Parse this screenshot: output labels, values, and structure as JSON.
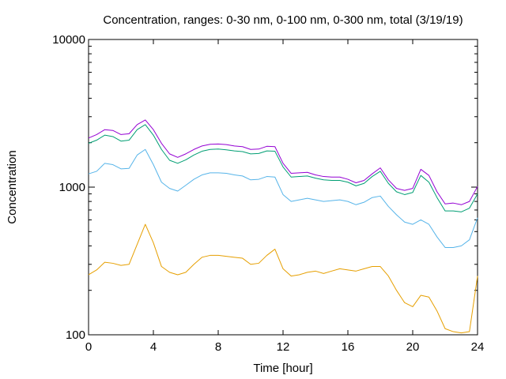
{
  "chart_data": {
    "type": "line",
    "title": "Concentration, ranges: 0-30 nm, 0-100 nm, 0-300 nm, total (3/19/19)",
    "xlabel": "Time [hour]",
    "ylabel": "Concentration",
    "xlim": [
      0,
      24
    ],
    "ylim": [
      100,
      10000
    ],
    "yscale": "log",
    "grid": false,
    "legend": "none",
    "x_ticks": [
      0,
      4,
      8,
      12,
      16,
      20,
      24
    ],
    "x_tick_labels": [
      "0",
      "4",
      "8",
      "12",
      "16",
      "20",
      "24"
    ],
    "y_ticks": [
      100,
      1000,
      10000
    ],
    "y_tick_labels": [
      "100",
      "1000",
      "10000"
    ],
    "x": [
      0,
      0.5,
      1,
      1.5,
      2,
      2.5,
      3,
      3.5,
      4,
      4.5,
      5,
      5.5,
      6,
      6.5,
      7,
      7.5,
      8,
      8.5,
      9,
      9.5,
      10,
      10.5,
      11,
      11.5,
      12,
      12.5,
      13,
      13.5,
      14,
      14.5,
      15,
      15.5,
      16,
      16.5,
      17,
      17.5,
      18,
      18.5,
      19,
      19.5,
      20,
      20.5,
      21,
      21.5,
      22,
      22.5,
      23,
      23.5,
      24
    ],
    "series": [
      {
        "color": "#e69f00",
        "values": [
          255,
          275,
          310,
          305,
          295,
          300,
          410,
          560,
          420,
          290,
          265,
          255,
          265,
          300,
          335,
          345,
          345,
          340,
          335,
          330,
          300,
          305,
          345,
          380,
          280,
          250,
          255,
          265,
          270,
          260,
          270,
          280,
          275,
          270,
          280,
          290,
          290,
          250,
          200,
          165,
          155,
          185,
          180,
          145,
          110,
          105,
          103,
          105,
          250
        ]
      },
      {
        "color": "#56b4e9",
        "values": [
          1230,
          1280,
          1450,
          1420,
          1330,
          1340,
          1650,
          1800,
          1420,
          1080,
          980,
          940,
          1030,
          1130,
          1210,
          1250,
          1250,
          1240,
          1210,
          1190,
          1120,
          1130,
          1180,
          1170,
          890,
          800,
          820,
          840,
          820,
          800,
          810,
          820,
          800,
          760,
          790,
          850,
          870,
          740,
          650,
          580,
          560,
          600,
          560,
          460,
          390,
          390,
          400,
          440,
          620
        ]
      },
      {
        "color": "#009e73",
        "values": [
          1980,
          2080,
          2250,
          2200,
          2050,
          2080,
          2450,
          2650,
          2250,
          1800,
          1520,
          1450,
          1530,
          1650,
          1750,
          1800,
          1810,
          1790,
          1760,
          1740,
          1680,
          1690,
          1760,
          1750,
          1370,
          1170,
          1180,
          1190,
          1150,
          1120,
          1110,
          1110,
          1080,
          1020,
          1060,
          1180,
          1280,
          1060,
          930,
          890,
          920,
          1200,
          1080,
          850,
          690,
          690,
          680,
          720,
          900
        ]
      },
      {
        "color": "#9400d3",
        "values": [
          2150,
          2270,
          2450,
          2420,
          2270,
          2300,
          2650,
          2850,
          2450,
          1980,
          1680,
          1590,
          1680,
          1800,
          1900,
          1950,
          1960,
          1940,
          1900,
          1880,
          1800,
          1810,
          1890,
          1880,
          1450,
          1240,
          1250,
          1260,
          1210,
          1180,
          1170,
          1170,
          1130,
          1070,
          1110,
          1230,
          1350,
          1120,
          980,
          950,
          980,
          1320,
          1200,
          930,
          770,
          780,
          760,
          800,
          1010
        ]
      }
    ]
  }
}
